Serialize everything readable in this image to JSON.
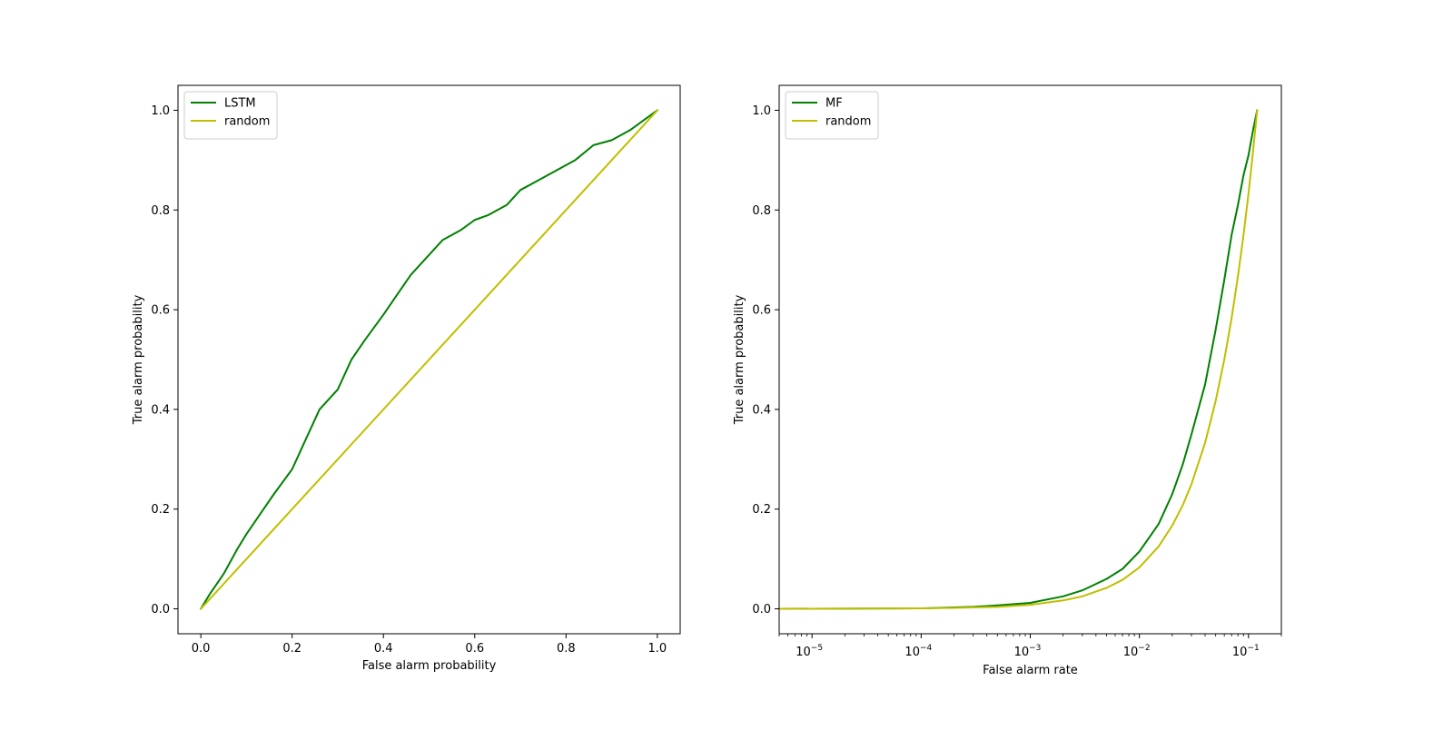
{
  "chart_data": [
    {
      "type": "line",
      "title": "",
      "xlabel": "False alarm probability",
      "ylabel": "True alarm probability",
      "xscale": "linear",
      "xlim": [
        -0.05,
        1.05
      ],
      "ylim": [
        -0.05,
        1.05
      ],
      "xticks": [
        0.0,
        0.2,
        0.4,
        0.6,
        0.8,
        1.0
      ],
      "xtick_labels": [
        "0.0",
        "0.2",
        "0.4",
        "0.6",
        "0.8",
        "1.0"
      ],
      "yticks": [
        0.0,
        0.2,
        0.4,
        0.6,
        0.8,
        1.0
      ],
      "ytick_labels": [
        "0.0",
        "0.2",
        "0.4",
        "0.6",
        "0.8",
        "1.0"
      ],
      "legend": "upper left",
      "grid": false,
      "series": [
        {
          "name": "LSTM",
          "color": "#008000",
          "x": [
            0.0,
            0.02,
            0.05,
            0.08,
            0.1,
            0.13,
            0.16,
            0.2,
            0.23,
            0.26,
            0.3,
            0.33,
            0.36,
            0.4,
            0.43,
            0.46,
            0.5,
            0.53,
            0.57,
            0.6,
            0.63,
            0.67,
            0.7,
            0.74,
            0.78,
            0.82,
            0.86,
            0.9,
            0.94,
            0.97,
            1.0
          ],
          "y": [
            0.0,
            0.03,
            0.07,
            0.12,
            0.15,
            0.19,
            0.23,
            0.28,
            0.34,
            0.4,
            0.44,
            0.5,
            0.54,
            0.59,
            0.63,
            0.67,
            0.71,
            0.74,
            0.76,
            0.78,
            0.79,
            0.81,
            0.84,
            0.86,
            0.88,
            0.9,
            0.93,
            0.94,
            0.96,
            0.98,
            1.0
          ]
        },
        {
          "name": "random",
          "color": "#bfbf00",
          "x": [
            0.0,
            1.0
          ],
          "y": [
            0.0,
            1.0
          ]
        }
      ]
    },
    {
      "type": "line",
      "title": "",
      "xlabel": "False alarm rate",
      "ylabel": "True alarm probability",
      "xscale": "log",
      "xlim": [
        5e-06,
        0.2
      ],
      "ylim": [
        -0.05,
        1.05
      ],
      "xticks": [
        1e-05,
        0.0001,
        0.001,
        0.01,
        0.1
      ],
      "xtick_labels": [
        {
          "base": "10",
          "exp": "−5"
        },
        {
          "base": "10",
          "exp": "−4"
        },
        {
          "base": "10",
          "exp": "−3"
        },
        {
          "base": "10",
          "exp": "−2"
        },
        {
          "base": "10",
          "exp": "−1"
        }
      ],
      "yticks": [
        0.0,
        0.2,
        0.4,
        0.6,
        0.8,
        1.0
      ],
      "ytick_labels": [
        "0.0",
        "0.2",
        "0.4",
        "0.6",
        "0.8",
        "1.0"
      ],
      "legend": "upper left",
      "grid": false,
      "series": [
        {
          "name": "MF",
          "color": "#008000",
          "x": [
            5e-06,
            0.0001,
            0.0003,
            0.0005,
            0.001,
            0.002,
            0.003,
            0.005,
            0.007,
            0.01,
            0.015,
            0.02,
            0.025,
            0.03,
            0.04,
            0.05,
            0.06,
            0.07,
            0.08,
            0.09,
            0.1,
            0.11,
            0.12
          ],
          "y": [
            0.0,
            0.001,
            0.004,
            0.007,
            0.012,
            0.025,
            0.037,
            0.06,
            0.08,
            0.115,
            0.17,
            0.23,
            0.29,
            0.35,
            0.45,
            0.56,
            0.66,
            0.75,
            0.81,
            0.87,
            0.91,
            0.96,
            1.0
          ]
        },
        {
          "name": "random",
          "color": "#bfbf00",
          "x": [
            5e-06,
            0.0001,
            0.0002,
            0.0005,
            0.001,
            0.002,
            0.003,
            0.005,
            0.007,
            0.01,
            0.015,
            0.02,
            0.025,
            0.03,
            0.04,
            0.05,
            0.06,
            0.07,
            0.08,
            0.09,
            0.1,
            0.11,
            0.12
          ],
          "y": [
            0.0,
            0.001,
            0.002,
            0.004,
            0.008,
            0.017,
            0.025,
            0.042,
            0.058,
            0.083,
            0.125,
            0.167,
            0.208,
            0.25,
            0.333,
            0.417,
            0.5,
            0.583,
            0.667,
            0.75,
            0.833,
            0.917,
            1.0
          ]
        }
      ]
    }
  ]
}
